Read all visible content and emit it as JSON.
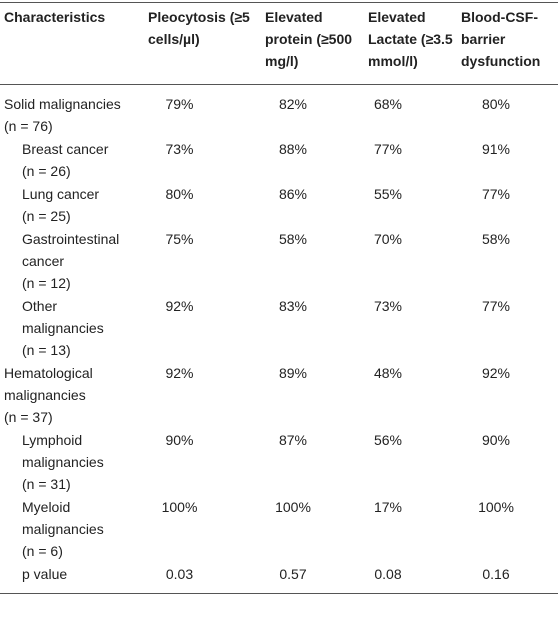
{
  "table": {
    "header": [
      "Characteristics",
      "Pleocytosis (≥5 cells/µl)",
      "Elevated protein (≥500 mg/l)",
      "Elevated Lactate (≥3.5 mmol/l)",
      "Blood-CSF-barrier dysfunction"
    ],
    "rows": [
      {
        "label": "Solid malignancies",
        "n": "(n = 76)",
        "sub": false,
        "cells": [
          "79%",
          "82%",
          "68%",
          "80%"
        ]
      },
      {
        "label": "Breast cancer",
        "n": "(n = 26)",
        "sub": true,
        "cells": [
          "73%",
          "88%",
          "77%",
          "91%"
        ]
      },
      {
        "label": "Lung cancer",
        "n": "(n = 25)",
        "sub": true,
        "cells": [
          "80%",
          "86%",
          "55%",
          "77%"
        ]
      },
      {
        "label": "Gastrointestinal cancer",
        "n": "(n = 12)",
        "sub": true,
        "cells": [
          "75%",
          "58%",
          "70%",
          "58%"
        ]
      },
      {
        "label": "Other malignancies",
        "n": "(n = 13)",
        "sub": true,
        "cells": [
          "92%",
          "83%",
          "73%",
          "77%"
        ]
      },
      {
        "label": "Hematological malignancies",
        "n": "(n = 37)",
        "sub": false,
        "cells": [
          "92%",
          "89%",
          "48%",
          "92%"
        ]
      },
      {
        "label": "Lymphoid malignancies",
        "n": "(n = 31)",
        "sub": true,
        "cells": [
          "90%",
          "87%",
          "56%",
          "90%"
        ]
      },
      {
        "label": "Myeloid malignancies",
        "n": "(n = 6)",
        "sub": true,
        "cells": [
          "100%",
          "100%",
          "17%",
          "100%"
        ]
      },
      {
        "label": "p value",
        "sub": true,
        "cells": [
          "0.03",
          "0.57",
          "0.08",
          "0.16"
        ]
      }
    ]
  }
}
